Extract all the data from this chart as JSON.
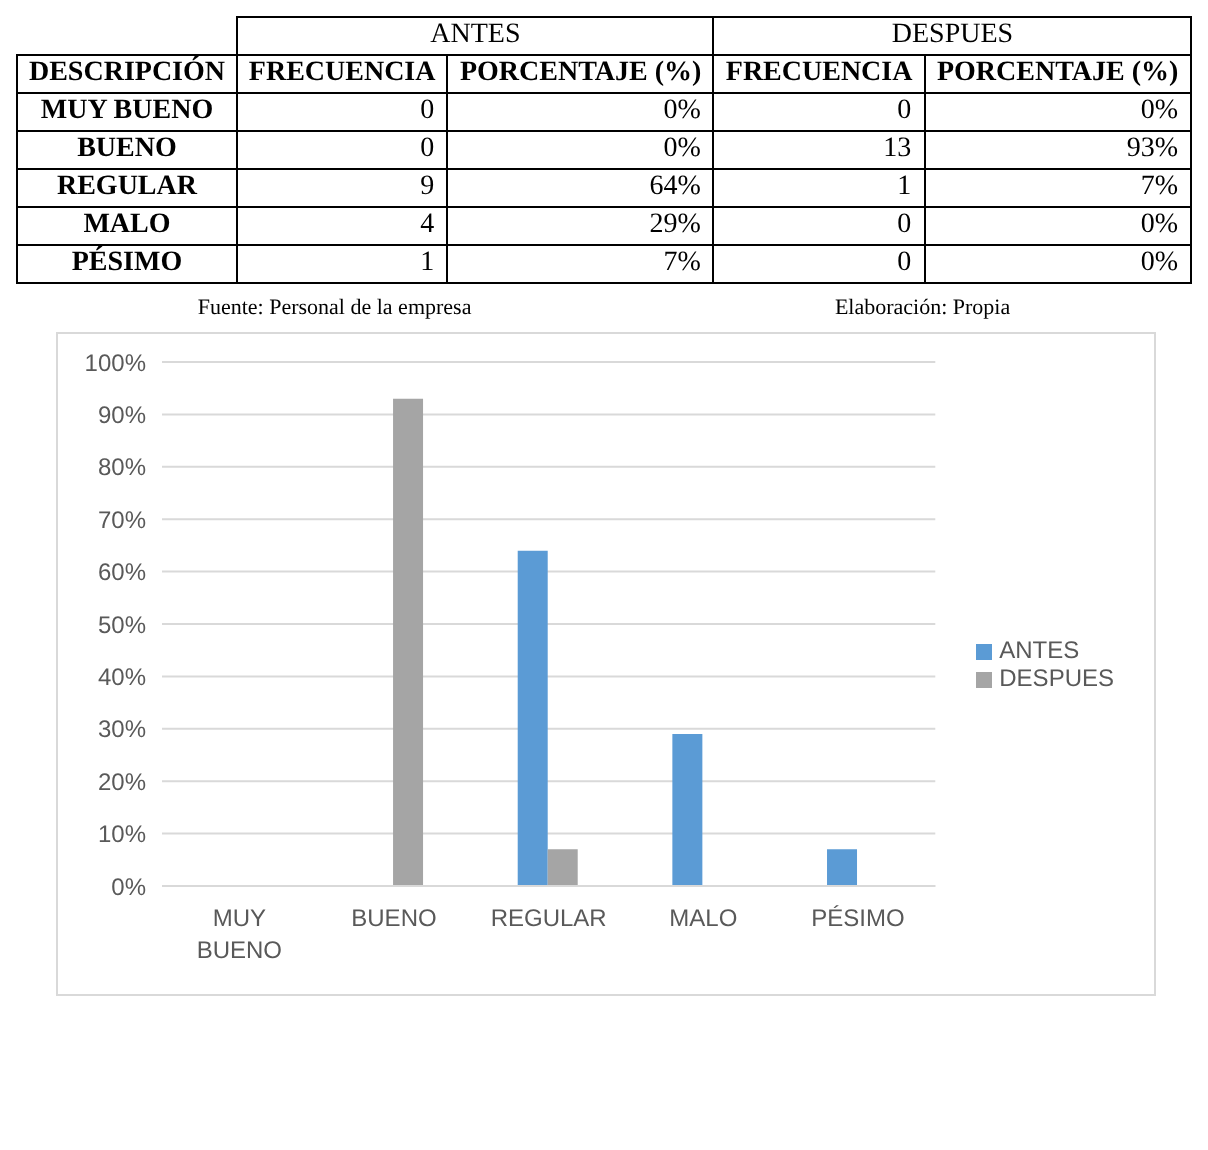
{
  "chart_data": [
    {
      "type": "other",
      "ylabel": "DESCRIPCIÓN",
      "annotations": [
        "ANTES",
        "DESPUES"
      ],
      "categories": [
        "FRECUENCIA",
        "PORCENTAJE (%)",
        "FRECUENCIA",
        "PORCENTAJE (%)"
      ],
      "y_categories": [
        "MUY BUENO",
        "BUENO",
        "REGULAR",
        "MALO",
        "PÉSIMO"
      ],
      "cell_labels": [
        [
          "0",
          "0%",
          "0",
          "0%"
        ],
        [
          "0",
          "0%",
          "13",
          "93%"
        ],
        [
          "9",
          "64%",
          "1",
          "7%"
        ],
        [
          "4",
          "29%",
          "0",
          "0%"
        ],
        [
          "1",
          "7%",
          "0",
          "0%"
        ]
      ]
    },
    {
      "type": "bar",
      "annotations": [
        "Fuente: Personal de la empresa",
        "Elaboración: Propia"
      ],
      "categories": [
        "MUY BUENO",
        "BUENO",
        "REGULAR",
        "MALO",
        "PÉSIMO"
      ],
      "series": [
        {
          "name": "ANTES",
          "color": "#5b9bd5",
          "values": [
            0,
            0,
            64,
            29,
            7
          ]
        },
        {
          "name": "DESPUES",
          "color": "#a5a5a5",
          "values": [
            0,
            93,
            7,
            0,
            0
          ]
        }
      ],
      "ylim": [
        0,
        100
      ],
      "yticks": [
        {
          "value": 0,
          "label": "0%"
        },
        {
          "value": 10,
          "label": "10%"
        },
        {
          "value": 20,
          "label": "20%"
        },
        {
          "value": 30,
          "label": "30%"
        },
        {
          "value": 40,
          "label": "40%"
        },
        {
          "value": 50,
          "label": "50%"
        },
        {
          "value": 60,
          "label": "60%"
        },
        {
          "value": 70,
          "label": "70%"
        },
        {
          "value": 80,
          "label": "80%"
        },
        {
          "value": 90,
          "label": "90%"
        },
        {
          "value": 100,
          "label": "100%"
        }
      ],
      "grid": "y",
      "legend": "right"
    }
  ]
}
